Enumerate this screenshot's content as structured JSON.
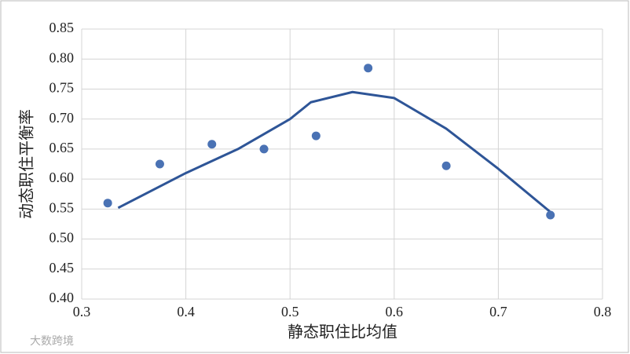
{
  "chart_data": {
    "type": "scatter",
    "x_label": "静态职住比均值",
    "y_label": "动态职住平衡率",
    "x": [
      0.325,
      0.375,
      0.425,
      0.475,
      0.525,
      0.575,
      0.65,
      0.75
    ],
    "values": [
      0.56,
      0.625,
      0.658,
      0.65,
      0.672,
      0.785,
      0.622,
      0.54
    ],
    "color": "#4a72b4",
    "trend": {
      "type": "line",
      "x": [
        0.335,
        0.4,
        0.45,
        0.5,
        0.52,
        0.56,
        0.6,
        0.65,
        0.7,
        0.75
      ],
      "values": [
        0.552,
        0.61,
        0.65,
        0.7,
        0.728,
        0.745,
        0.735,
        0.684,
        0.617,
        0.545
      ],
      "color": "#2e5597"
    },
    "xlim": [
      0.3,
      0.8
    ],
    "xticks": [
      0.3,
      0.4,
      0.5,
      0.6,
      0.7,
      0.8
    ],
    "ylim": [
      0.4,
      0.85
    ],
    "yticks": [
      {
        "value": 0.4,
        "label": "0.40"
      },
      0.45,
      {
        "value": 0.5,
        "label": "0.50"
      },
      0.55,
      {
        "value": 0.6,
        "label": "0.60"
      },
      0.65,
      {
        "value": 0.7,
        "label": "0.70"
      },
      0.75,
      {
        "value": 0.8,
        "label": "0.80"
      },
      0.85
    ],
    "grid": true,
    "watermark": "大数跨境"
  }
}
